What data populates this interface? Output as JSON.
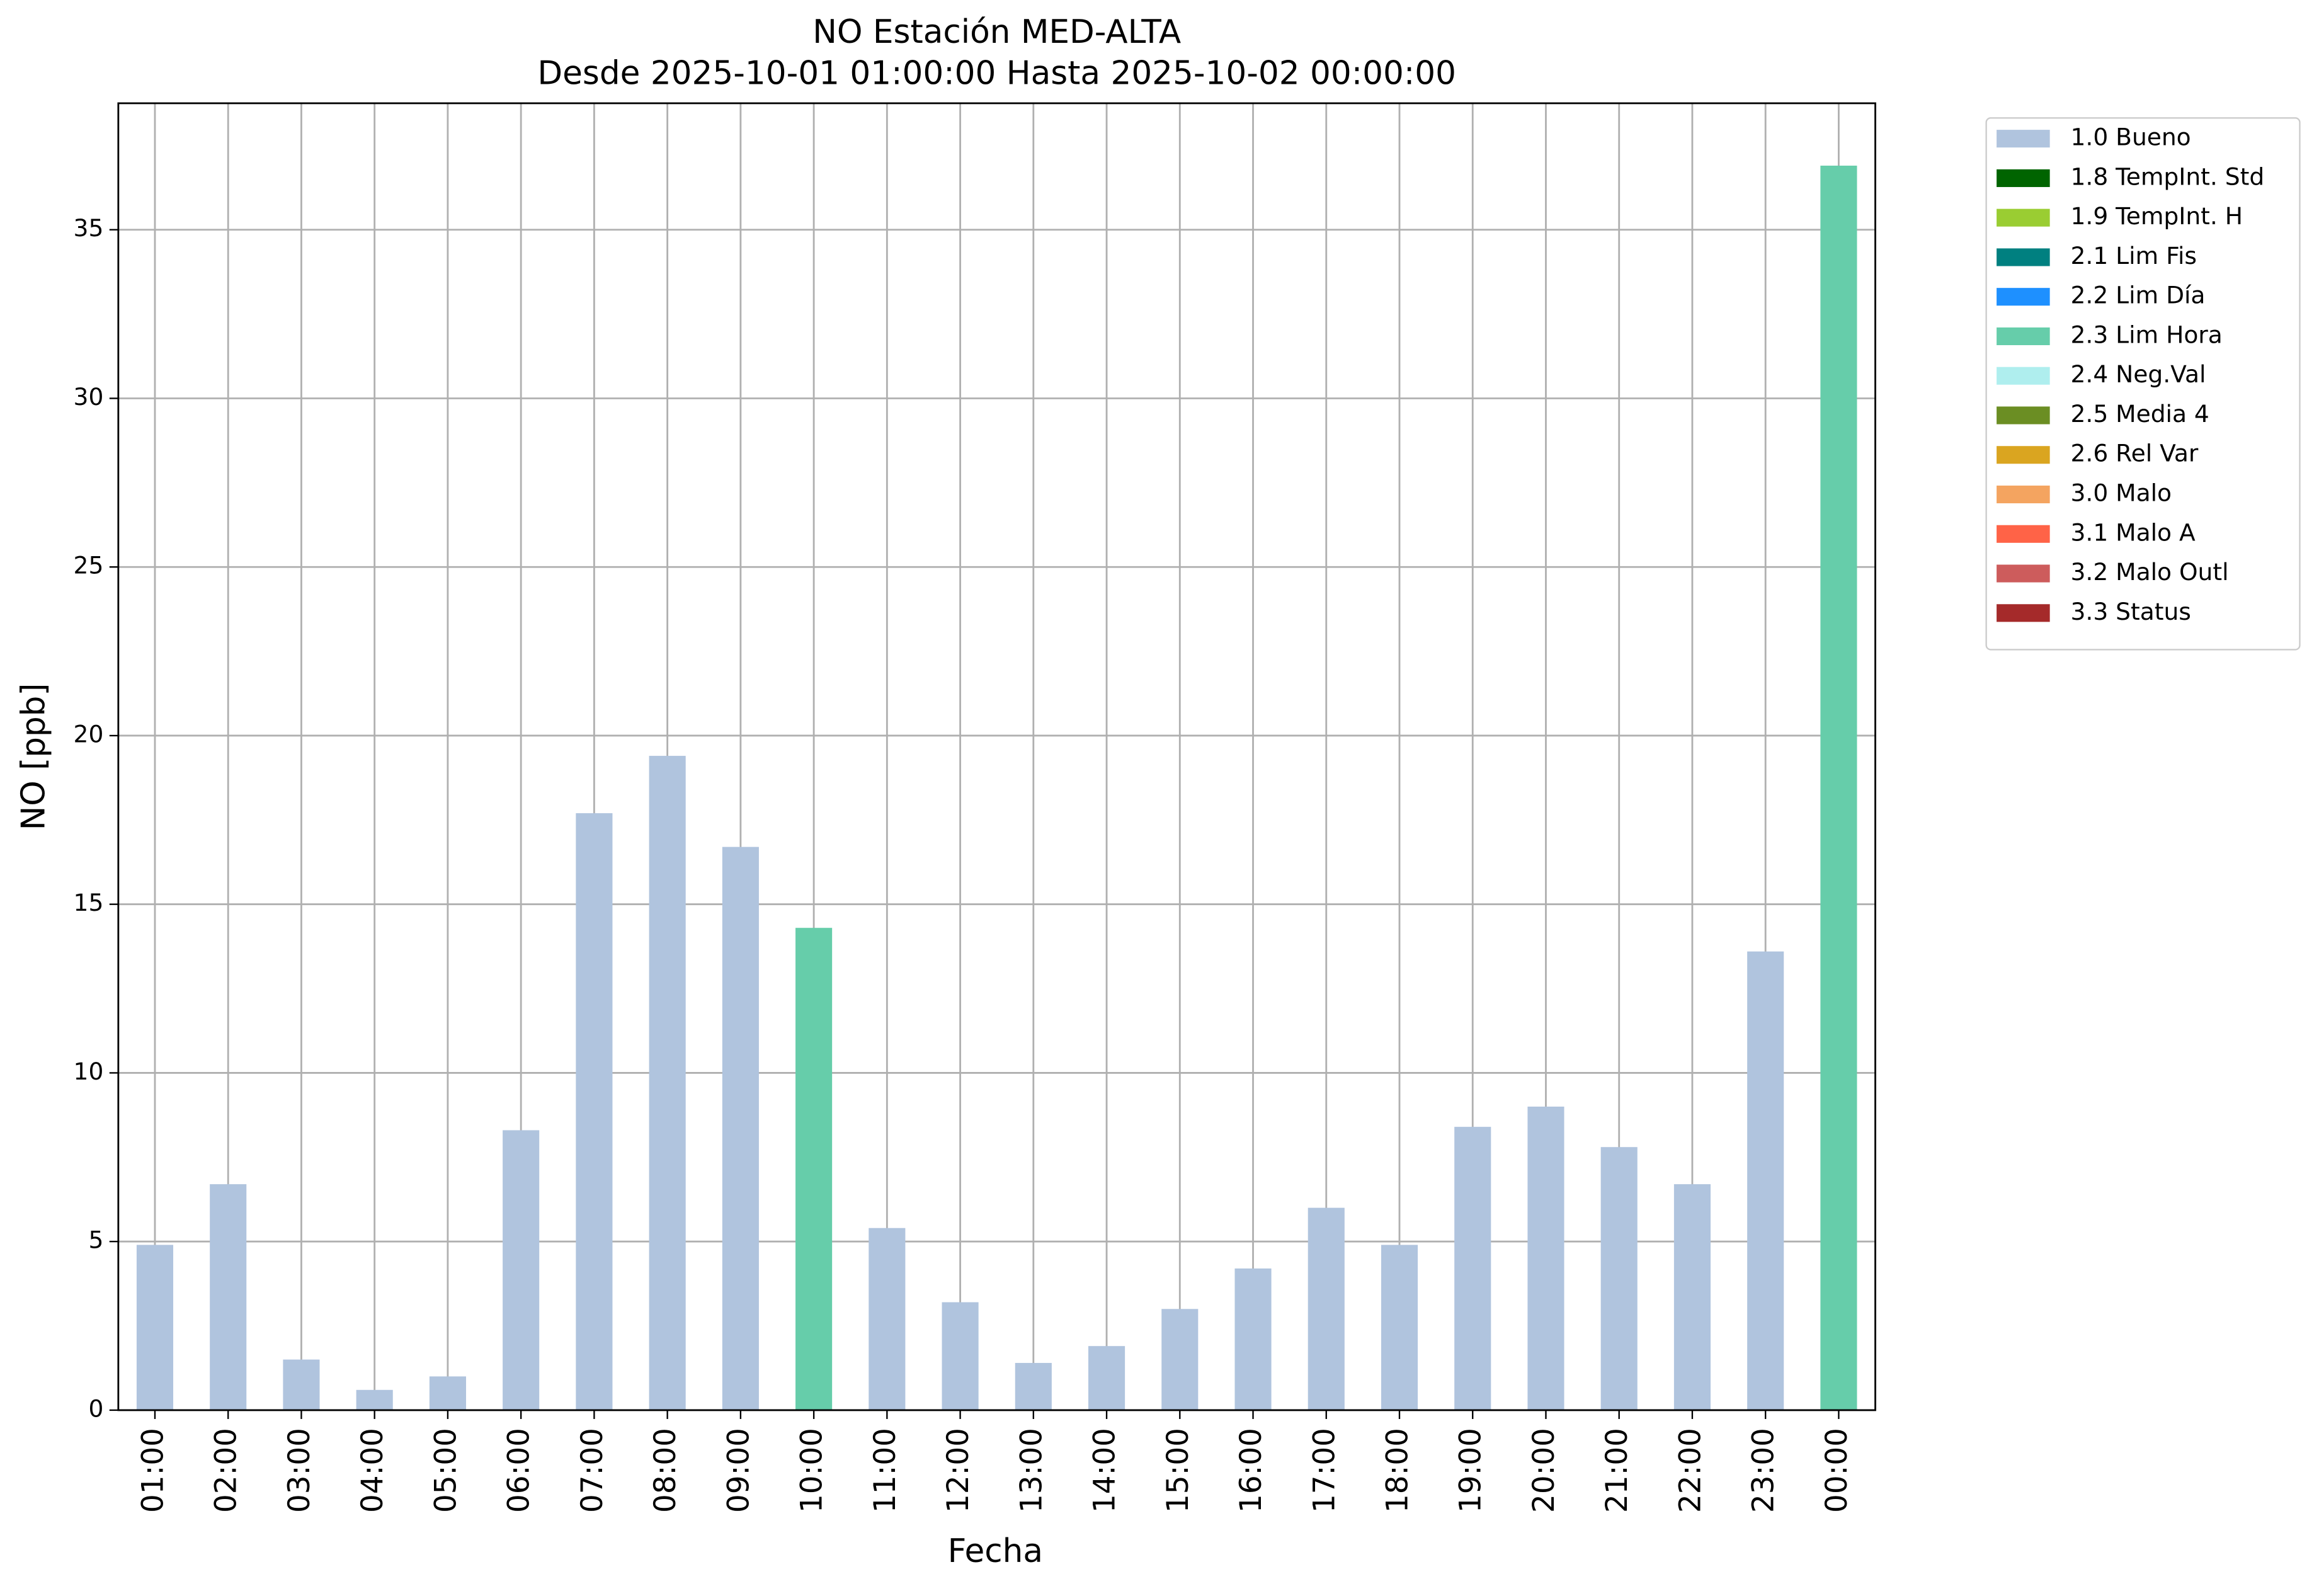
{
  "chart_data": {
    "type": "stacked_bar",
    "title": "NO Estación MED-ALTA",
    "subtitle": "Desde 2025-10-01 01:00:00 Hasta 2025-10-02 00:00:00",
    "x_label": "Fecha",
    "y_label": "NO [ppb]",
    "categories": [
      "01:00",
      "02:00",
      "03:00",
      "04:00",
      "05:00",
      "06:00",
      "07:00",
      "08:00",
      "09:00",
      "10:00",
      "11:00",
      "12:00",
      "13:00",
      "14:00",
      "15:00",
      "16:00",
      "17:00",
      "18:00",
      "19:00",
      "20:00",
      "21:00",
      "22:00",
      "23:00",
      "00:00"
    ],
    "series": [
      {
        "name": "1.0 Bueno",
        "color": "#b0c4de",
        "values": [
          4.9,
          6.7,
          1.5,
          0.6,
          1.0,
          8.3,
          17.7,
          19.4,
          16.7,
          null,
          5.4,
          3.2,
          1.4,
          1.9,
          3.0,
          4.2,
          6.0,
          4.9,
          8.4,
          9.0,
          7.8,
          6.7,
          13.6,
          null
        ]
      },
      {
        "name": "1.8 TempInt. Std",
        "color": "#006400",
        "values": [
          null,
          null,
          null,
          null,
          null,
          null,
          null,
          null,
          null,
          null,
          null,
          null,
          null,
          null,
          null,
          null,
          null,
          null,
          null,
          null,
          null,
          null,
          null,
          null
        ]
      },
      {
        "name": "1.9 TempInt. H",
        "color": "#9acd32",
        "values": [
          null,
          null,
          null,
          null,
          null,
          null,
          null,
          null,
          null,
          null,
          null,
          null,
          null,
          null,
          null,
          null,
          null,
          null,
          null,
          null,
          null,
          null,
          null,
          null
        ]
      },
      {
        "name": "2.1 Lim Fis",
        "color": "#008080",
        "values": [
          null,
          null,
          null,
          null,
          null,
          null,
          null,
          null,
          null,
          null,
          null,
          null,
          null,
          null,
          null,
          null,
          null,
          null,
          null,
          null,
          null,
          null,
          null,
          null
        ]
      },
      {
        "name": "2.2 Lim Día",
        "color": "#1e90ff",
        "values": [
          null,
          null,
          null,
          null,
          null,
          null,
          null,
          null,
          null,
          null,
          null,
          null,
          null,
          null,
          null,
          null,
          null,
          null,
          null,
          null,
          null,
          null,
          null,
          null
        ]
      },
      {
        "name": "2.3 Lim Hora",
        "color": "#66cdaa",
        "values": [
          null,
          null,
          null,
          null,
          null,
          null,
          null,
          null,
          null,
          14.3,
          null,
          null,
          null,
          null,
          null,
          null,
          null,
          null,
          null,
          null,
          null,
          null,
          null,
          36.9
        ]
      },
      {
        "name": "2.4 Neg.Val",
        "color": "#afeeee",
        "values": [
          null,
          null,
          null,
          null,
          null,
          null,
          null,
          null,
          null,
          null,
          null,
          null,
          null,
          null,
          null,
          null,
          null,
          null,
          null,
          null,
          null,
          null,
          null,
          null
        ]
      },
      {
        "name": "2.5 Media 4",
        "color": "#6b8e23",
        "values": [
          null,
          null,
          null,
          null,
          null,
          null,
          null,
          null,
          null,
          null,
          null,
          null,
          null,
          null,
          null,
          null,
          null,
          null,
          null,
          null,
          null,
          null,
          null,
          null
        ]
      },
      {
        "name": "2.6 Rel Var",
        "color": "#daa520",
        "values": [
          null,
          null,
          null,
          null,
          null,
          null,
          null,
          null,
          null,
          null,
          null,
          null,
          null,
          null,
          null,
          null,
          null,
          null,
          null,
          null,
          null,
          null,
          null,
          null
        ]
      },
      {
        "name": "3.0 Malo",
        "color": "#f4a460",
        "values": [
          null,
          null,
          null,
          null,
          null,
          null,
          null,
          null,
          null,
          null,
          null,
          null,
          null,
          null,
          null,
          null,
          null,
          null,
          null,
          null,
          null,
          null,
          null,
          null
        ]
      },
      {
        "name": "3.1 Malo A",
        "color": "#ff6347",
        "values": [
          null,
          null,
          null,
          null,
          null,
          null,
          null,
          null,
          null,
          null,
          null,
          null,
          null,
          null,
          null,
          null,
          null,
          null,
          null,
          null,
          null,
          null,
          null,
          null
        ]
      },
      {
        "name": "3.2 Malo Outl",
        "color": "#cd5c5c",
        "values": [
          null,
          null,
          null,
          null,
          null,
          null,
          null,
          null,
          null,
          null,
          null,
          null,
          null,
          null,
          null,
          null,
          null,
          null,
          null,
          null,
          null,
          null,
          null,
          null
        ]
      },
      {
        "name": "3.3 Status",
        "color": "#a52a2a",
        "values": [
          null,
          null,
          null,
          null,
          null,
          null,
          null,
          null,
          null,
          null,
          null,
          null,
          null,
          null,
          null,
          null,
          null,
          null,
          null,
          null,
          null,
          null,
          null,
          null
        ]
      }
    ],
    "ylim": [
      0,
      38.75
    ],
    "yticks": [
      0,
      5,
      10,
      15,
      20,
      25,
      30,
      35
    ],
    "grid": true,
    "legend": "outside-upper-right"
  }
}
